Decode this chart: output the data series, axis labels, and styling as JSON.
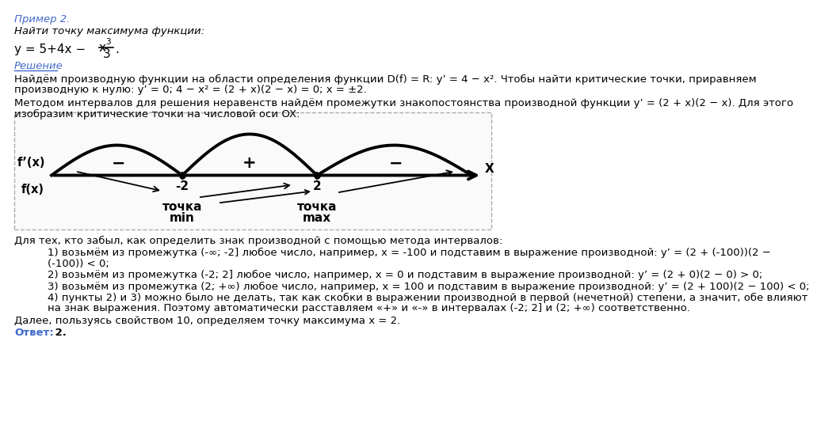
{
  "title": "Пример 2.",
  "subtitle": "Найти точку максимума функции:",
  "section_header": "Решение",
  "para1_line1": "Найдём производную функции на области определения функции D(f) = R: y’ = 4 − x². Чтобы найти критические точки, приравняем",
  "para1_line2": "производную к нулю: y’ = 0; 4 − x² = (2 + x)(2 − x) = 0; x = ±2.",
  "para2_line1": "Методом интервалов для решения неравенств найдём промежутки знакопостоянства производной функции y’ = (2 + x)(2 − x). Для этого",
  "para2_line2": "изобразим критические точки на числовой оси OX:",
  "para3": "Для тех, кто забыл, как определить знак производной с помощью метода интервалов:",
  "item1_line1": "1) возьмём из промежутка (-∞; -2] любое число, например, x = -100 и подставим в выражение производной: y’ = (2 + (-100))(2 −",
  "item1_line2": "(-100)) < 0;",
  "item2": "2) возьмём из промежутка (-2; 2] любое число, например, x = 0 и подставим в выражение производной: y’ = (2 + 0)(2 − 0) > 0;",
  "item3": "3) возьмём из промежутка (2; +∞) любое число, например, x = 100 и подставим в выражение производной: y’ = (2 + 100)(2 − 100) < 0;",
  "item4_line1": "4) пункты 2) и 3) можно было не делать, так как скобки в выражении производной в первой (нечетной) степени, а значит, обе влияют",
  "item4_line2": "на знак выражения. Поэтому автоматически расставляем «+» и «-» в интервалах (-2; 2] и (2; +∞) соответственно.",
  "conclusion": "Далее, пользуясь свойством 10, определяем точку максимума x = 2.",
  "answer_label": "Ответ:",
  "answer_value": " 2.",
  "bg_color": "#ffffff",
  "text_color": "#000000",
  "blue_color": "#4169cc",
  "diagram": {
    "fp_label": "f’(x)",
    "f_label": "f(x)",
    "x_label": "X",
    "minus1": "−",
    "plus1": "+",
    "minus2": "−",
    "point1": "-2",
    "point2": "2",
    "label1_top": "точка",
    "label1_bot": "min",
    "label2_top": "точка",
    "label2_bot": "max"
  }
}
